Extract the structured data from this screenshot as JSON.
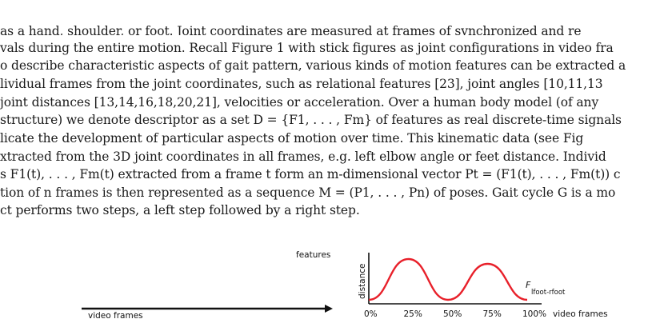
{
  "text_lines": [
    "as a hand, shoulder, or foot. Joint coordinates are measured at frames of synchronized and re",
    "vals during the entire motion. Recall Figure 1 with stick figures as joint configurations in video fra",
    "o describe characteristic aspects of gait pattern, various kinds of motion features can be extracted a",
    "lividual frames from the joint coordinates, such as relational features [23], joint angles [10,11,13",
    "joint distances [13,14,16,18,20,21], velocities or acceleration. Over a human body model (of any",
    "structure) we denote descriptor as a set D = {F1, . . . , Fm} of features as real discrete-time signals",
    "licate the development of particular aspects of motion over time. This kinematic data (see Fig",
    "xtracted from the 3D joint coordinates in all frames, e.g. left elbow angle or feet distance. Individ",
    "s F1(t), . . . , Fm(t) extracted from a frame t form an m-dimensional vector Pt = (F1(t), . . . , Fm(t)) c",
    "tion of n frames is then represented as a sequence M = (P1, . . . , Pn) of poses. Gait cycle G is a mo",
    "ct performs two steps, a left step followed by a right step."
  ],
  "figure_left": {
    "label_features": "features",
    "label_x": "video frames",
    "colors": {
      "red": "#e8202a",
      "yellow": "#f5c400",
      "green": "#2aa84a",
      "purple": "#8a2aa8",
      "blue": "#2266cc"
    }
  },
  "figure_right": {
    "label_y": "distance",
    "label_x": "video frames",
    "series_label": "F",
    "series_sub": "lfoot-rfoot",
    "ticks": [
      "0%",
      "25%",
      "50%",
      "75%",
      "100%"
    ],
    "line_color": "#e8202a"
  },
  "chart_data": {
    "type": "line",
    "x": [
      0,
      25,
      50,
      75,
      100
    ],
    "x_tick_labels": [
      "0%",
      "25%",
      "50%",
      "75%",
      "100%"
    ],
    "xlabel": "video frames",
    "ylabel": "distance",
    "series": [
      {
        "name": "Flfoot-rfoot",
        "values": [
          0.05,
          0.9,
          0.05,
          0.8,
          0.05
        ]
      }
    ]
  }
}
